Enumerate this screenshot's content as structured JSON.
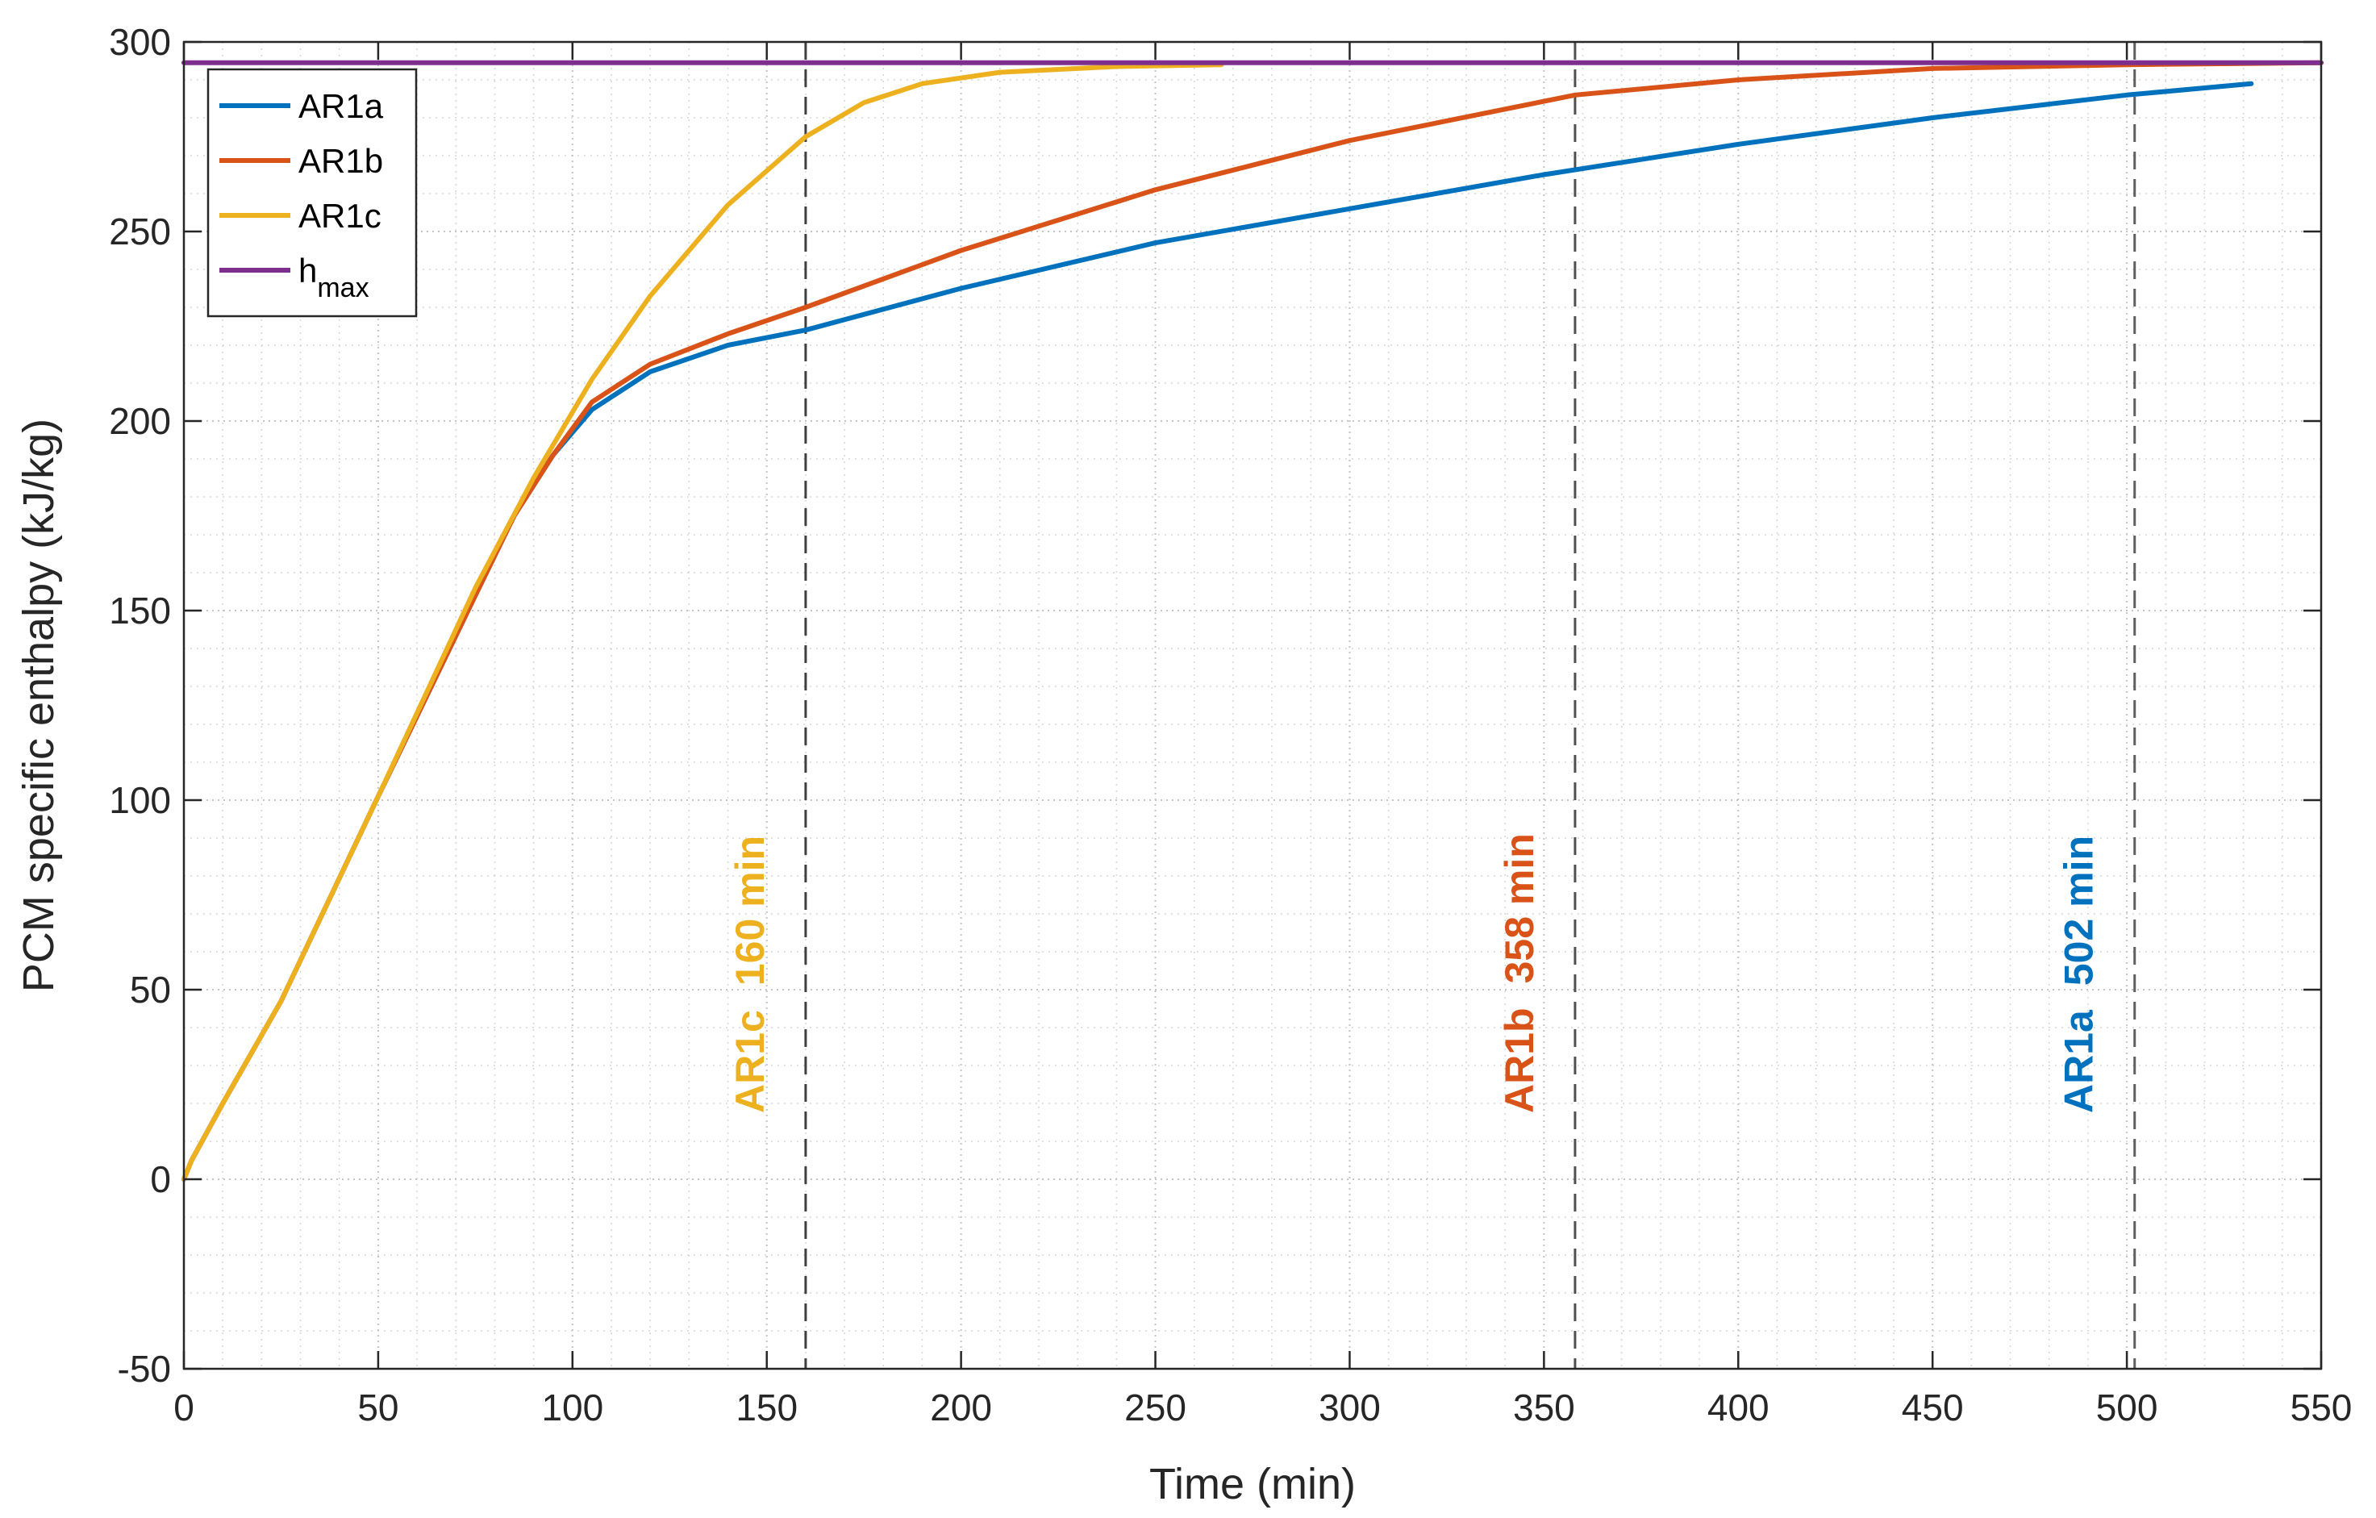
{
  "chart_data": {
    "type": "line",
    "title": "",
    "xlabel": "Time (min)",
    "ylabel": "PCM specific enthalpy (kJ/kg)",
    "xlim": [
      0,
      550
    ],
    "ylim": [
      -50,
      300
    ],
    "xticks": [
      0,
      50,
      100,
      150,
      200,
      250,
      300,
      350,
      400,
      450,
      500,
      550
    ],
    "yticks": [
      -50,
      0,
      50,
      100,
      150,
      200,
      250,
      300
    ],
    "grid": "major and minor, dotted",
    "legend_placement": "top-left",
    "series": [
      {
        "name": "AR1a",
        "color": "#0072BD",
        "points": [
          [
            0,
            0
          ],
          [
            2,
            5
          ],
          [
            10,
            20
          ],
          [
            25,
            47
          ],
          [
            50,
            101
          ],
          [
            75,
            154
          ],
          [
            85,
            175
          ],
          [
            95,
            191
          ],
          [
            105,
            203
          ],
          [
            120,
            213
          ],
          [
            140,
            220
          ],
          [
            160,
            224
          ],
          [
            200,
            235
          ],
          [
            250,
            247
          ],
          [
            300,
            256
          ],
          [
            350,
            265
          ],
          [
            400,
            273
          ],
          [
            450,
            280
          ],
          [
            500,
            286
          ],
          [
            532,
            289
          ]
        ]
      },
      {
        "name": "AR1b",
        "color": "#D95319",
        "points": [
          [
            0,
            0
          ],
          [
            2,
            5
          ],
          [
            10,
            20
          ],
          [
            25,
            47
          ],
          [
            50,
            101
          ],
          [
            75,
            154
          ],
          [
            85,
            175
          ],
          [
            95,
            191
          ],
          [
            105,
            205
          ],
          [
            120,
            215
          ],
          [
            140,
            223
          ],
          [
            160,
            230
          ],
          [
            200,
            245
          ],
          [
            250,
            261
          ],
          [
            300,
            274
          ],
          [
            358,
            286
          ],
          [
            400,
            290
          ],
          [
            450,
            293
          ],
          [
            500,
            294
          ],
          [
            550,
            294.5
          ]
        ]
      },
      {
        "name": "AR1c",
        "color": "#EDB120",
        "points": [
          [
            0,
            0
          ],
          [
            2,
            5
          ],
          [
            10,
            20
          ],
          [
            25,
            47
          ],
          [
            50,
            101
          ],
          [
            75,
            156
          ],
          [
            90,
            185
          ],
          [
            105,
            211
          ],
          [
            120,
            233
          ],
          [
            140,
            257
          ],
          [
            160,
            275
          ],
          [
            175,
            284
          ],
          [
            190,
            289
          ],
          [
            210,
            292
          ],
          [
            240,
            293.5
          ],
          [
            267,
            294
          ]
        ]
      },
      {
        "name": "h_max",
        "color": "#7E2F8E",
        "points": [
          [
            0,
            294.5
          ],
          [
            550,
            294.5
          ]
        ]
      }
    ],
    "vlines": [
      {
        "x": 160,
        "color": "#404040"
      },
      {
        "x": 358,
        "color": "#505050"
      },
      {
        "x": 502,
        "color": "#606060"
      }
    ],
    "legend": [
      {
        "label": "AR1a",
        "sub": "",
        "color": "#0072BD"
      },
      {
        "label": "AR1b",
        "sub": "",
        "color": "#D95319"
      },
      {
        "label": "AR1c",
        "sub": "",
        "color": "#EDB120"
      },
      {
        "label": "h",
        "sub": "max",
        "color": "#7E2F8E"
      }
    ],
    "annotations": [
      {
        "name": "AR1c",
        "value": "160 min",
        "x": 160,
        "color": "#EDB120"
      },
      {
        "name": "AR1b",
        "value": "358 min",
        "x": 358,
        "color": "#D95319"
      },
      {
        "name": "AR1a",
        "value": "502 min",
        "x": 502,
        "color": "#0072BD"
      }
    ]
  }
}
